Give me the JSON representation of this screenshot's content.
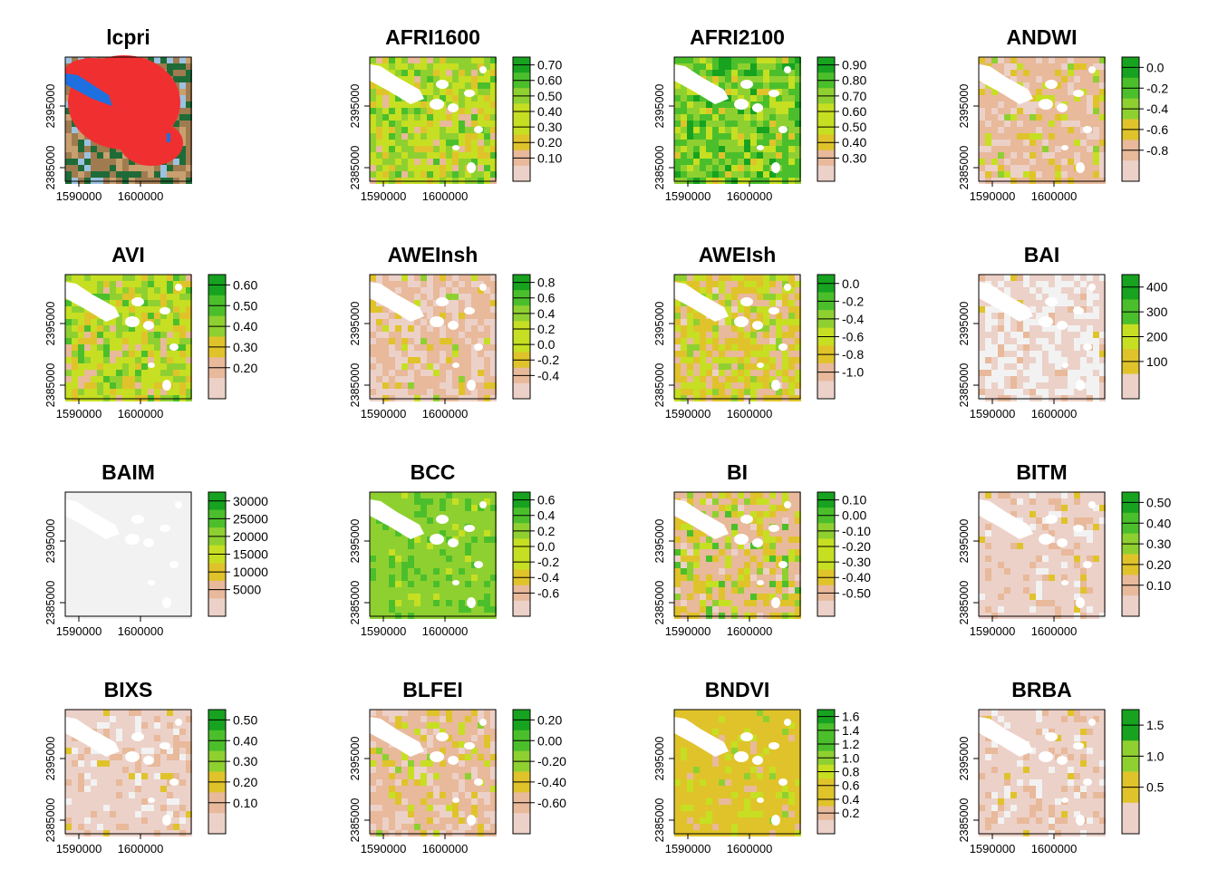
{
  "figure": {
    "x_ticks": [
      "1590000",
      "1600000"
    ],
    "y_ticks": [
      "2385000",
      "2395000"
    ]
  },
  "palette": [
    "#f2f2f2",
    "#ecd1c8",
    "#e8b99a",
    "#e0c32a",
    "#c6df22",
    "#8fd031",
    "#4bbf2b",
    "#17a31f"
  ],
  "chart_data": [
    {
      "type": "heatmap",
      "title": "lcpri",
      "legend": null,
      "style": "landcover"
    },
    {
      "type": "heatmap",
      "title": "AFRI1600",
      "legend": [
        "0.70",
        "0.60",
        "0.50",
        "0.40",
        "0.30",
        "0.20",
        "0.10"
      ],
      "style": "mixed"
    },
    {
      "type": "heatmap",
      "title": "AFRI2100",
      "legend": [
        "0.90",
        "0.80",
        "0.70",
        "0.60",
        "0.50",
        "0.40",
        "0.30"
      ],
      "style": "green"
    },
    {
      "type": "heatmap",
      "title": "ANDWI",
      "legend": [
        "0.0",
        "-0.2",
        "-0.4",
        "-0.6",
        "-0.8"
      ],
      "style": "tan"
    },
    {
      "type": "heatmap",
      "title": "AVI",
      "legend": [
        "0.60",
        "0.50",
        "0.40",
        "0.30",
        "0.20"
      ],
      "style": "mixed"
    },
    {
      "type": "heatmap",
      "title": "AWEInsh",
      "legend": [
        "0.8",
        "0.6",
        "0.4",
        "0.2",
        "0.0",
        "-0.2",
        "-0.4"
      ],
      "style": "pink"
    },
    {
      "type": "heatmap",
      "title": "AWEIsh",
      "legend": [
        "0.0",
        "-0.2",
        "-0.4",
        "-0.6",
        "-0.8",
        "-1.0"
      ],
      "style": "yellowgreen"
    },
    {
      "type": "heatmap",
      "title": "BAI",
      "legend": [
        "400",
        "300",
        "200",
        "100"
      ],
      "style": "pale"
    },
    {
      "type": "heatmap",
      "title": "BAIM",
      "legend": [
        "30000",
        "25000",
        "20000",
        "15000",
        "10000",
        "5000"
      ],
      "style": "gray"
    },
    {
      "type": "heatmap",
      "title": "BCC",
      "legend": [
        "0.6",
        "0.4",
        "0.2",
        "0.0",
        "-0.2",
        "-0.4",
        "-0.6"
      ],
      "style": "solidgreen"
    },
    {
      "type": "heatmap",
      "title": "BI",
      "legend": [
        "0.10",
        "0.00",
        "-0.10",
        "-0.20",
        "-0.30",
        "-0.40",
        "-0.50"
      ],
      "style": "bi"
    },
    {
      "type": "heatmap",
      "title": "BITM",
      "legend": [
        "0.50",
        "0.40",
        "0.30",
        "0.20",
        "0.10"
      ],
      "style": "lightpink"
    },
    {
      "type": "heatmap",
      "title": "BIXS",
      "legend": [
        "0.50",
        "0.40",
        "0.30",
        "0.20",
        "0.10"
      ],
      "style": "lightpink"
    },
    {
      "type": "heatmap",
      "title": "BLFEI",
      "legend": [
        "0.20",
        "0.00",
        "-0.20",
        "-0.40",
        "-0.60"
      ],
      "style": "tan"
    },
    {
      "type": "heatmap",
      "title": "BNDVI",
      "legend": [
        "1.6",
        "1.4",
        "1.2",
        "1.0",
        "0.8",
        "0.6",
        "0.4",
        "0.2"
      ],
      "style": "yellow"
    },
    {
      "type": "heatmap",
      "title": "BRBA",
      "legend": [
        "1.5",
        "1.0",
        "0.5"
      ],
      "style": "lightpink"
    }
  ]
}
